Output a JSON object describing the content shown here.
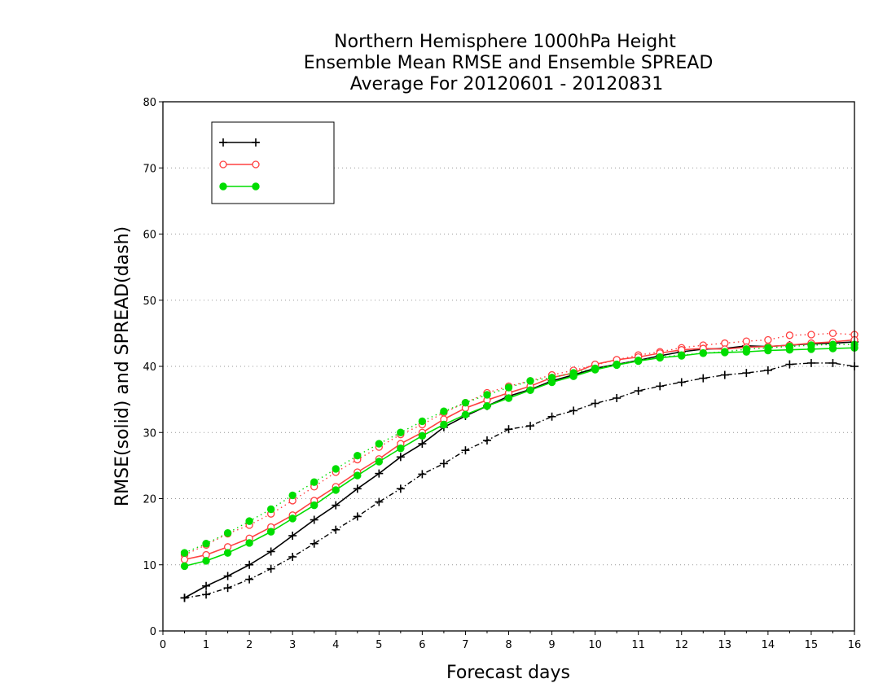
{
  "chart_data": {
    "type": "line",
    "title": [
      "Northern Hemisphere 1000hPa Height",
      "Ensemble Mean RMSE and Ensemble SPREAD",
      "Average For 20120601 - 20120831"
    ],
    "xlabel": "Forecast days",
    "ylabel": "RMSE(solid) and SPREAD(dash)",
    "xlim": [
      0,
      16
    ],
    "ylim": [
      0,
      80
    ],
    "xticks": [
      "0",
      "1",
      "2",
      "3",
      "4",
      "5",
      "6",
      "7",
      "8",
      "9",
      "10",
      "11",
      "12",
      "13",
      "14",
      "15",
      "16"
    ],
    "yticks": [
      "0",
      "10",
      "20",
      "30",
      "40",
      "50",
      "60",
      "70",
      "80"
    ],
    "grid": "horizontal dotted",
    "legend_position": "top-left",
    "x": [
      0.5,
      1,
      1.5,
      2,
      2.5,
      3,
      3.5,
      4,
      4.5,
      5,
      5.5,
      6,
      6.5,
      7,
      7.5,
      8,
      8.5,
      9,
      9.5,
      10,
      10.5,
      11,
      11.5,
      12,
      12.5,
      13,
      13.5,
      14,
      14.5,
      15,
      15.5,
      16
    ],
    "series": [
      {
        "name": "",
        "color": "#000000",
        "marker": "plus",
        "rmse": [
          5,
          6.8,
          8.3,
          10,
          12,
          14.4,
          16.8,
          19,
          21.5,
          23.8,
          26.3,
          28.3,
          30.8,
          32.5,
          34,
          35.5,
          36.5,
          37.8,
          38.7,
          39.7,
          40.3,
          40.9,
          41.6,
          42.2,
          42.6,
          42.7,
          43.1,
          43,
          43.2,
          43.4,
          43.5,
          43.7
        ],
        "spread": [
          5,
          5.5,
          6.5,
          7.8,
          9.4,
          11.2,
          13.2,
          15.3,
          17.3,
          19.5,
          21.5,
          23.7,
          25.3,
          27.3,
          28.8,
          30.5,
          31,
          32.4,
          33.3,
          34.4,
          35.2,
          36.3,
          37,
          37.6,
          38.2,
          38.7,
          39,
          39.4,
          40.3,
          40.5,
          40.5,
          40
        ]
      },
      {
        "name": "",
        "color": "#ff4040",
        "marker": "open-circle",
        "rmse": [
          10.8,
          11.5,
          12.7,
          14,
          15.7,
          17.5,
          19.7,
          21.8,
          24,
          26,
          28.3,
          30,
          32,
          33.7,
          34.9,
          36,
          37,
          38.3,
          39,
          40.3,
          41,
          41.4,
          42,
          42.5,
          42.7,
          42.6,
          42.9,
          43,
          43.2,
          43.5,
          43.7,
          44
        ],
        "spread": [
          11.5,
          13,
          14.7,
          16,
          17.7,
          19.7,
          21.8,
          24,
          25.9,
          27.8,
          29.7,
          31.2,
          33,
          34.5,
          36,
          37,
          37.8,
          38.7,
          39.4,
          40.2,
          41,
          41.7,
          42.2,
          42.8,
          43.2,
          43.5,
          43.8,
          44,
          44.7,
          44.8,
          45,
          44.8
        ]
      },
      {
        "name": "",
        "color": "#00dd00",
        "marker": "filled-circle",
        "rmse": [
          9.8,
          10.6,
          11.8,
          13.3,
          15,
          17,
          19,
          21.3,
          23.5,
          25.6,
          27.6,
          29.5,
          31.2,
          32.7,
          34,
          35.2,
          36.4,
          37.6,
          38.5,
          39.5,
          40.2,
          40.8,
          41.3,
          41.6,
          42,
          42.1,
          42.2,
          42.4,
          42.5,
          42.6,
          42.7,
          42.8
        ],
        "spread": [
          11.8,
          13.2,
          14.8,
          16.6,
          18.4,
          20.5,
          22.5,
          24.5,
          26.5,
          28.3,
          30,
          31.7,
          33.2,
          34.5,
          35.7,
          36.8,
          37.8,
          38.3,
          39,
          39.7,
          40.3,
          40.9,
          41.4,
          41.7,
          42,
          42.2,
          42.6,
          42.8,
          43,
          43.2,
          43.3,
          43.3
        ]
      }
    ]
  }
}
